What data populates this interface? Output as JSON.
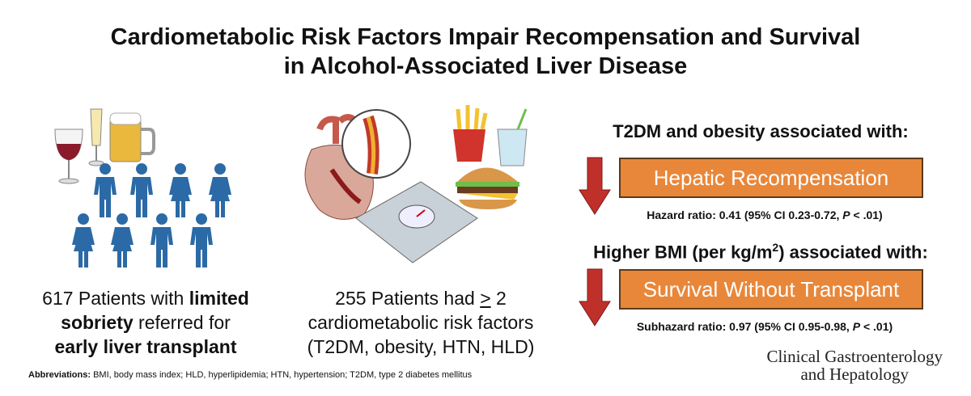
{
  "title": {
    "line1": "Cardiometabolic Risk Factors Impair Recompensation and Survival",
    "line2": "in Alcohol-Associated Liver Disease"
  },
  "left": {
    "lines": [
      [
        "617 Patients with ",
        "limited"
      ],
      [
        "sobriety",
        " referred for"
      ],
      [
        "early liver transplant"
      ]
    ]
  },
  "middle": {
    "lines": [
      [
        "255 Patients had ",
        ">",
        " 2"
      ],
      [
        "cardiometabolic risk factors"
      ],
      [
        "(T2DM, obesity, HTN, HLD)"
      ]
    ]
  },
  "findings": [
    {
      "heading": [
        "T2DM and obesity associated with:"
      ],
      "box": "Hepatic Recompensation",
      "stat": [
        "Hazard ratio: 0.41 (95% CI 0.23-0.72, ",
        "P",
        " < .01)"
      ]
    },
    {
      "heading": [
        "Higher BMI (per kg/m",
        "2",
        ") associated with:"
      ],
      "box": "Survival Without Transplant",
      "stat": [
        "Subhazard ratio: 0.97 (95% CI 0.95-0.98, ",
        "P",
        " < .01)"
      ]
    }
  ],
  "abbreviations": [
    "Abbreviations:",
    " BMI, body mass index; HLD, hyperlipidemia; HTN, hypertension; T2DM, type 2 diabetes mellitus"
  ],
  "journal": [
    "Clinical Gastroenterology",
    "and Hepatology"
  ]
}
